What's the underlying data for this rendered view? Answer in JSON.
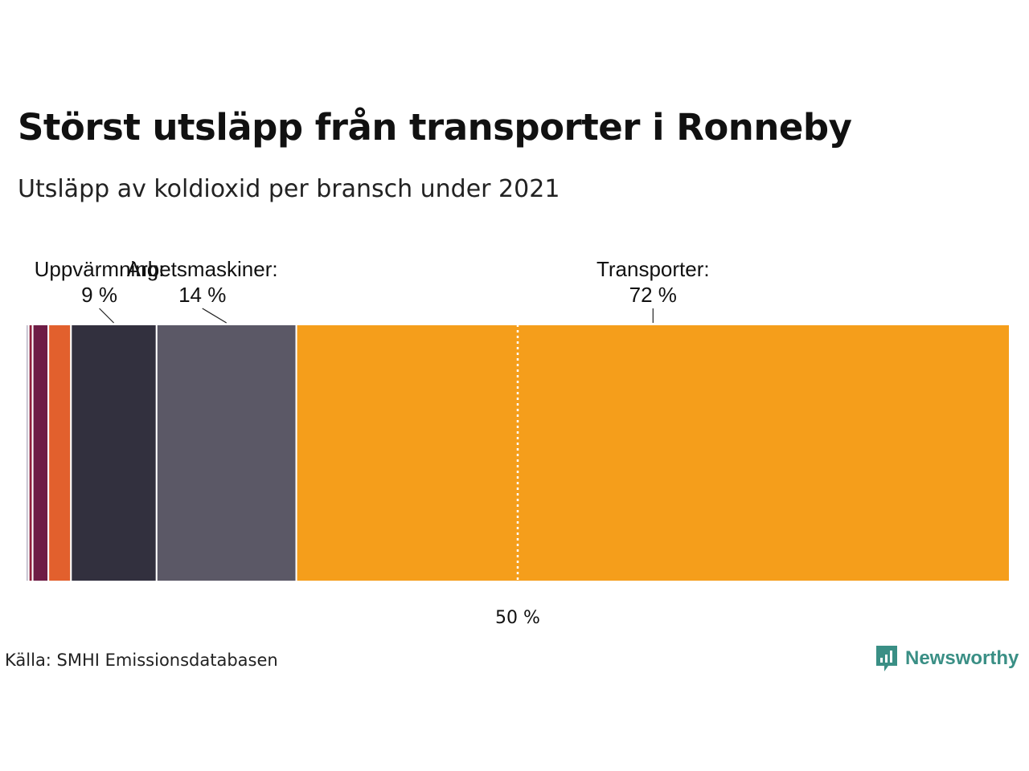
{
  "title": "Störst utsläpp från transporter i Ronneby",
  "subtitle": "Utsläpp av koldioxid per bransch under 2021",
  "source": "Källa: SMHI Emissionsdatabasen",
  "brand": {
    "name": "Newsworthy",
    "icon": "newsworthy-logo-icon",
    "color": "#3a8f85"
  },
  "chart_data": {
    "type": "bar",
    "orientation": "stacked-horizontal-100",
    "unit": "%",
    "segments": [
      {
        "value": 0.3,
        "color": "#b9b6c6",
        "label": "",
        "value_label": ""
      },
      {
        "value": 0.4,
        "color": "#8f1f3c",
        "label": "",
        "value_label": ""
      },
      {
        "value": 1.6,
        "color": "#6e1c45",
        "label": "",
        "value_label": ""
      },
      {
        "value": 2.3,
        "color": "#e2602d",
        "label": "",
        "value_label": ""
      },
      {
        "value": 8.7,
        "color": "#32303e",
        "label": "Uppvärmning:",
        "value_label": "9 %"
      },
      {
        "value": 14.2,
        "color": "#5b5866",
        "label": "Arbetsmaskiner:",
        "value_label": "14 %"
      },
      {
        "value": 72.5,
        "color": "#f59e1b",
        "label": "Transporter:",
        "value_label": "72 %"
      }
    ],
    "reference_line": {
      "value": 50,
      "label": "50 %"
    },
    "xlim": [
      0,
      100
    ]
  }
}
